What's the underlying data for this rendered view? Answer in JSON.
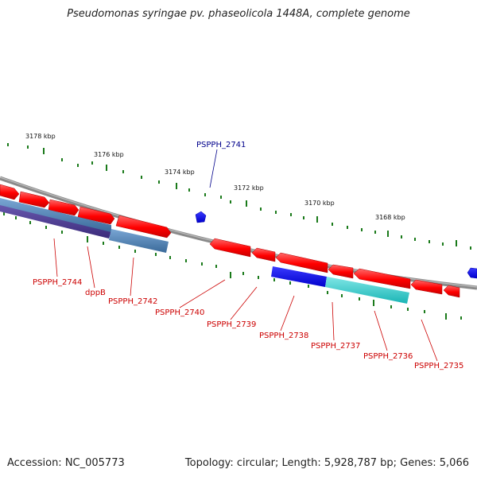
{
  "header": {
    "title": "Pseudomonas syringae pv. phaseolicola 1448A, complete genome"
  },
  "footer": {
    "accession": "Accession: NC_005773",
    "summary": "Topology: circular; Length: 5,928,787 bp; Genes: 5,066"
  },
  "scale_labels": [
    "3178 kbp",
    "3176 kbp",
    "3174 kbp",
    "3172 kbp",
    "3170 kbp",
    "3168 kbp"
  ],
  "gene_labels": {
    "pspph_2741": "PSPPH_2741",
    "pspph_2744": "PSPPH_2744",
    "dppb": "dppB",
    "pspph_2742": "PSPPH_2742",
    "pspph_2740": "PSPPH_2740",
    "pspph_2739": "PSPPH_2739",
    "pspph_2738": "PSPPH_2738",
    "pspph_2737": "PSPPH_2737",
    "pspph_2736": "PSPPH_2736",
    "pspph_2735": "PSPPH_2735"
  },
  "colors": {
    "cds": "#ff0000",
    "highlight": "#0000ee",
    "highlight_label": "#00008b",
    "gene_label": "#cc0000",
    "tick": "#1a7a1a",
    "backbone": "#8a8a8a",
    "teal": "#22cccc",
    "steel": "#4a7fb0",
    "violet": "#4b3a8c"
  }
}
